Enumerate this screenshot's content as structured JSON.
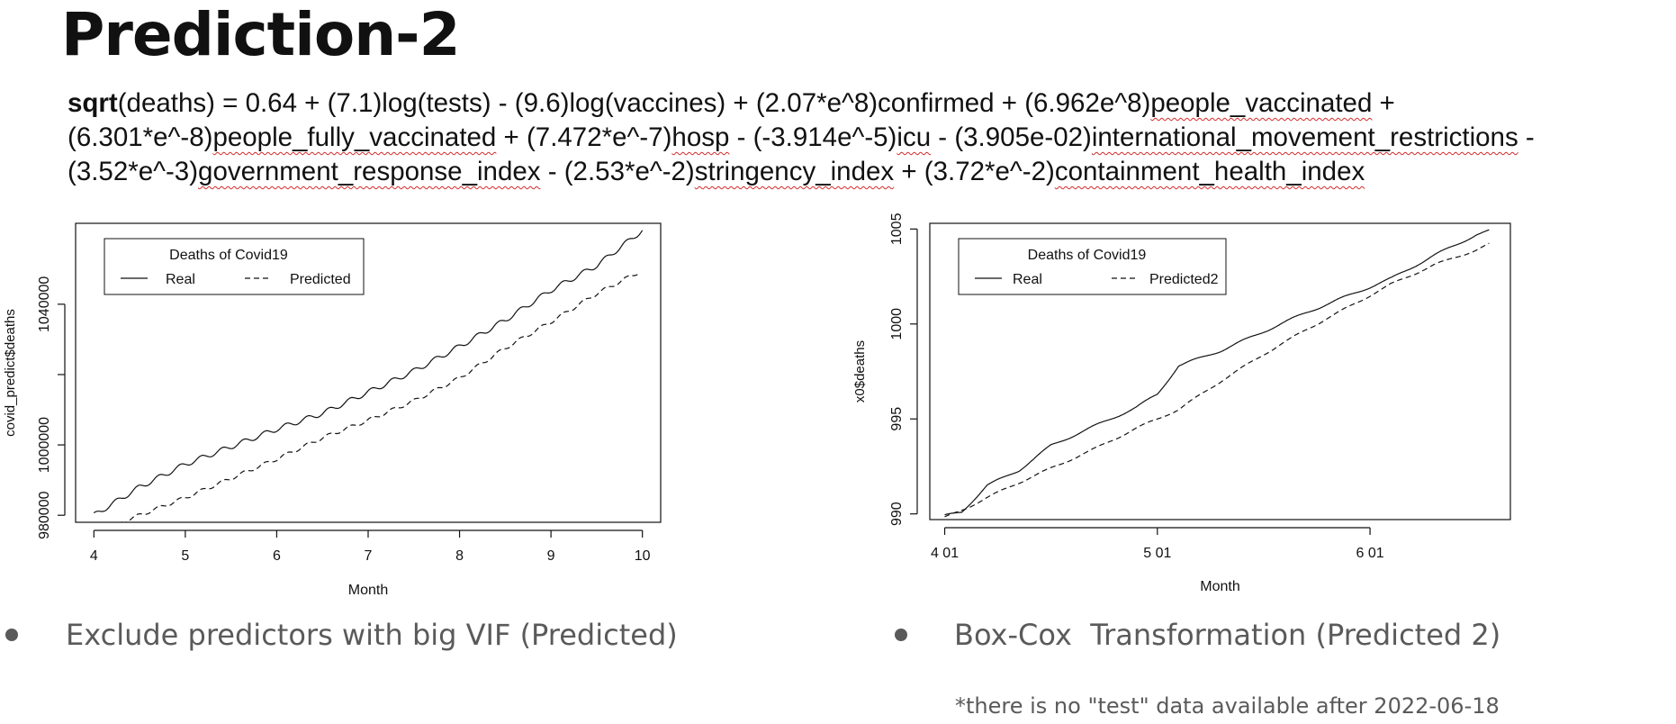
{
  "slide": {
    "title": "Prediction-2",
    "equation": {
      "lead": "sqrt",
      "parts": [
        {
          "t": "(deaths) = 0.64 + (7.1)log(tests) - (9.6)log(vaccines) + (2.07*e^8)confirmed + (6.962e^8)",
          "u": false
        },
        {
          "t": "people_vaccinated",
          "u": true
        },
        {
          "t": " + (6.301*e^-8)",
          "u": false
        },
        {
          "t": "people_fully_vaccinated",
          "u": true
        },
        {
          "t": " + (7.472*e^-7)",
          "u": false
        },
        {
          "t": "hosp",
          "u": true
        },
        {
          "t": " - (-3.914e^-5)",
          "u": false
        },
        {
          "t": "icu",
          "u": true
        },
        {
          "t": " - (3.905e-02)",
          "u": false
        },
        {
          "t": "international_movement_restrictions",
          "u": true
        },
        {
          "t": " -   (3.52*e^-3)",
          "u": false
        },
        {
          "t": "government_response_index",
          "u": true
        },
        {
          "t": " - (2.53*e^-2)",
          "u": false
        },
        {
          "t": "stringency_index",
          "u": true
        },
        {
          "t": " + (3.72*e^-2)",
          "u": false
        },
        {
          "t": "containment_health_index",
          "u": true
        }
      ]
    },
    "bullets": [
      {
        "text": "Exclude predictors with big VIF (Predicted)"
      },
      {
        "text": "Box-Cox  Transformation (Predicted 2)"
      }
    ],
    "note": "*there is no \"test\" data available after 2022-06-18",
    "colors": {
      "text": "#111111",
      "bullet": "#5a5a5a",
      "spellcheck": "#d42a2a"
    }
  },
  "chart_data": [
    {
      "type": "line",
      "xlabel": "Month",
      "ylabel": "covid_predict$deaths",
      "xlim": [
        3.8,
        10.2
      ],
      "ylim": [
        978000,
        1063000
      ],
      "x_ticks": [
        {
          "v": 4,
          "label": "4"
        },
        {
          "v": 5,
          "label": "5"
        },
        {
          "v": 6,
          "label": "6"
        },
        {
          "v": 7,
          "label": "7"
        },
        {
          "v": 8,
          "label": "8"
        },
        {
          "v": 9,
          "label": "9"
        },
        {
          "v": 10,
          "label": "10"
        }
      ],
      "y_ticks": [
        {
          "v": 980000,
          "label": "980000"
        },
        {
          "v": 1000000,
          "label": "1000000"
        },
        {
          "v": 1020000,
          "label": ""
        },
        {
          "v": 1040000,
          "label": "1040000"
        }
      ],
      "legend": {
        "title": "Deaths of Covid19",
        "position": "top-left"
      },
      "series": [
        {
          "name": "Real",
          "style": "solid",
          "x": [
            4.0,
            4.5,
            5.0,
            5.5,
            6.0,
            6.5,
            7.0,
            7.5,
            8.0,
            8.5,
            9.0,
            9.5,
            10.0
          ],
          "values": [
            980000,
            988000,
            994500,
            999500,
            1004500,
            1009000,
            1015000,
            1021000,
            1028000,
            1035500,
            1044000,
            1051000,
            1061000
          ],
          "wave": 700
        },
        {
          "name": "Predicted",
          "style": "dashed",
          "x": [
            4.3,
            4.5,
            5.0,
            5.5,
            6.0,
            6.5,
            7.0,
            7.5,
            8.0,
            8.5,
            9.0,
            9.5,
            9.95
          ],
          "values": [
            978000,
            980000,
            985000,
            990500,
            996000,
            1002000,
            1007000,
            1012500,
            1019000,
            1027500,
            1035000,
            1043000,
            1049000
          ],
          "wave": 500
        }
      ]
    },
    {
      "type": "line",
      "xlabel": "Month",
      "ylabel": "x0$deaths",
      "xlim": [
        3.93,
        6.66
      ],
      "ylim": [
        989.7,
        1005.3
      ],
      "x_ticks": [
        {
          "v": 4.0,
          "label": "4 01"
        },
        {
          "v": 5.0,
          "label": "5 01"
        },
        {
          "v": 6.0,
          "label": "6 01"
        }
      ],
      "y_ticks": [
        {
          "v": 990,
          "label": "990"
        },
        {
          "v": 995,
          "label": "995"
        },
        {
          "v": 1000,
          "label": "1000"
        },
        {
          "v": 1005,
          "label": "1005"
        }
      ],
      "legend": {
        "title": "Deaths of Covid19",
        "position": "top-left"
      },
      "series": [
        {
          "name": "Real",
          "style": "solid",
          "x": [
            4.0,
            4.08,
            4.2,
            4.35,
            4.5,
            4.7,
            4.9,
            5.0,
            5.1,
            5.3,
            5.5,
            5.7,
            5.9,
            6.1,
            6.3,
            6.5,
            6.56
          ],
          "values": [
            989.9,
            990.1,
            991.5,
            992.3,
            993.6,
            994.6,
            995.6,
            996.3,
            997.8,
            998.6,
            999.6,
            1000.6,
            1001.5,
            1002.4,
            1003.6,
            1004.7,
            1004.9
          ],
          "wave": 0.06
        },
        {
          "name": "Predicted2",
          "style": "dashed",
          "x": [
            4.0,
            4.1,
            4.3,
            4.5,
            4.7,
            4.9,
            5.1,
            5.3,
            5.5,
            5.7,
            5.9,
            6.1,
            6.3,
            6.5,
            6.56
          ],
          "values": [
            989.8,
            990.3,
            991.4,
            992.4,
            993.4,
            994.5,
            995.5,
            997.0,
            998.4,
            999.7,
            1000.9,
            1002.1,
            1003.1,
            1003.9,
            1004.2
          ],
          "wave": 0.05
        }
      ]
    }
  ]
}
